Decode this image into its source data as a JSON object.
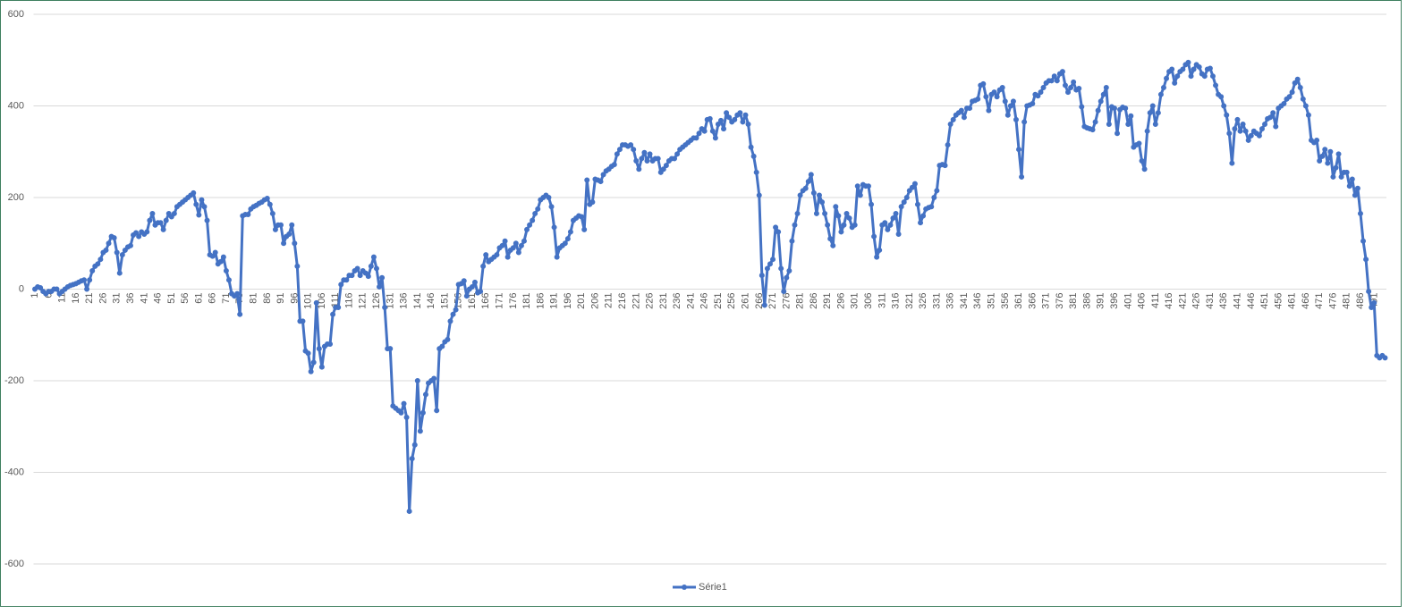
{
  "chart_data": {
    "type": "line",
    "categories": [
      1,
      null,
      null,
      null,
      null,
      6,
      null,
      null,
      null,
      null,
      11,
      null,
      null,
      null,
      null,
      16,
      null,
      null,
      null,
      null,
      21,
      null,
      null,
      null,
      null,
      26,
      null,
      null,
      null,
      null,
      31,
      null,
      null,
      null,
      null,
      36,
      null,
      null,
      null,
      null,
      41,
      null,
      null,
      null,
      null,
      46,
      null,
      null,
      null,
      null,
      51,
      null,
      null,
      null,
      null,
      56,
      null,
      null,
      null,
      null,
      61,
      null,
      null,
      null,
      null,
      66,
      null,
      null,
      null,
      null,
      71,
      null,
      null,
      null,
      null,
      76,
      null,
      null,
      null,
      null,
      81,
      null,
      null,
      null,
      null,
      86,
      null,
      null,
      null,
      null,
      91,
      null,
      null,
      null,
      null,
      96,
      null,
      null,
      null,
      null,
      101,
      null,
      null,
      null,
      null,
      106,
      null,
      null,
      null,
      null,
      111,
      null,
      null,
      null,
      null,
      116,
      null,
      null,
      null,
      null,
      121,
      null,
      null,
      null,
      null,
      126,
      null,
      null,
      null,
      null,
      131,
      null,
      null,
      null,
      null,
      136,
      null,
      null,
      null,
      null,
      141,
      null,
      null,
      null,
      null,
      146,
      null,
      null,
      null,
      null,
      151,
      null,
      null,
      null,
      null,
      156,
      null,
      null,
      null,
      null,
      161,
      null,
      null,
      null,
      null,
      166,
      null,
      null,
      null,
      null,
      171,
      null,
      null,
      null,
      null,
      176,
      null,
      null,
      null,
      null,
      181,
      null,
      null,
      null,
      null,
      186,
      null,
      null,
      null,
      null,
      191,
      null,
      null,
      null,
      null,
      196,
      null,
      null,
      null,
      null,
      201,
      null,
      null,
      null,
      null,
      206,
      null,
      null,
      null,
      null,
      211,
      null,
      null,
      null,
      null,
      216,
      null,
      null,
      null,
      null,
      221,
      null,
      null,
      null,
      null,
      226,
      null,
      null,
      null,
      null,
      231,
      null,
      null,
      null,
      null,
      236,
      null,
      null,
      null,
      null,
      241,
      null,
      null,
      null,
      null,
      246,
      null,
      null,
      null,
      null,
      251,
      null,
      null,
      null,
      null,
      256,
      null,
      null,
      null,
      null,
      261,
      null,
      null,
      null,
      null,
      266,
      null,
      null,
      null,
      null,
      271,
      null,
      null,
      null,
      null,
      276,
      null,
      null,
      null,
      null,
      281,
      null,
      null,
      null,
      null,
      286,
      null,
      null,
      null,
      null,
      291,
      null,
      null,
      null,
      null,
      296,
      null,
      null,
      null,
      null,
      301,
      null,
      null,
      null,
      null,
      306,
      null,
      null,
      null,
      null,
      311,
      null,
      null,
      null,
      null,
      316,
      null,
      null,
      null,
      null,
      321,
      null,
      null,
      null,
      null,
      326,
      null,
      null,
      null,
      null,
      331,
      null,
      null,
      null,
      null,
      336,
      null,
      null,
      null,
      null,
      341,
      null,
      null,
      null,
      null,
      346,
      null,
      null,
      null,
      null,
      351,
      null,
      null,
      null,
      null,
      356,
      null,
      null,
      null,
      null,
      361,
      null,
      null,
      null,
      null,
      366,
      null,
      null,
      null,
      null,
      371,
      null,
      null,
      null,
      null,
      376,
      null,
      null,
      null,
      null,
      381,
      null,
      null,
      null,
      null,
      386,
      null,
      null,
      null,
      null,
      391,
      null,
      null,
      null,
      null,
      396,
      null,
      null,
      null,
      null,
      401,
      null,
      null,
      null,
      null,
      406,
      null,
      null,
      null,
      null,
      411,
      null,
      null,
      null,
      null,
      416,
      null,
      null,
      null,
      null,
      421,
      null,
      null,
      null,
      null,
      426,
      null,
      null,
      null,
      null,
      431,
      null,
      null,
      null,
      null,
      436,
      null,
      null,
      null,
      null,
      441,
      null,
      null,
      null,
      null,
      446,
      null,
      null,
      null,
      null,
      451,
      null,
      null,
      null,
      null,
      456,
      null,
      null,
      null,
      null,
      461,
      null,
      null,
      null,
      null,
      466,
      null,
      null,
      null,
      null,
      471,
      null,
      null,
      null,
      null,
      476,
      null,
      null,
      null,
      null,
      481,
      null,
      null,
      null,
      null,
      486,
      null,
      null,
      null,
      null,
      491,
      null,
      null,
      null,
      null
    ],
    "series": [
      {
        "name": "Série1",
        "color": "#4472c4",
        "values": [
          0,
          5,
          3,
          -5,
          -10,
          -5,
          -5,
          0,
          0,
          -10,
          -5,
          0,
          5,
          8,
          10,
          12,
          15,
          18,
          20,
          0,
          20,
          40,
          50,
          55,
          65,
          80,
          85,
          100,
          115,
          112,
          80,
          35,
          75,
          85,
          92,
          95,
          118,
          123,
          115,
          125,
          120,
          125,
          150,
          165,
          140,
          145,
          145,
          130,
          150,
          165,
          158,
          165,
          180,
          185,
          190,
          195,
          200,
          205,
          210,
          185,
          162,
          195,
          180,
          150,
          75,
          72,
          80,
          55,
          60,
          70,
          40,
          20,
          -10,
          -15,
          -10,
          -55,
          160,
          163,
          163,
          175,
          180,
          183,
          187,
          190,
          195,
          198,
          185,
          165,
          130,
          140,
          140,
          100,
          115,
          120,
          140,
          100,
          50,
          -70,
          -70,
          -135,
          -140,
          -180,
          -160,
          -30,
          -130,
          -170,
          -125,
          -120,
          -120,
          -55,
          -40,
          -40,
          10,
          20,
          20,
          30,
          30,
          40,
          45,
          30,
          40,
          35,
          28,
          50,
          70,
          45,
          5,
          25,
          -40,
          -130,
          -130,
          -255,
          -260,
          -265,
          -270,
          -250,
          -280,
          -485,
          -370,
          -340,
          -200,
          -310,
          -270,
          -230,
          -205,
          -200,
          -195,
          -265,
          -130,
          -125,
          -115,
          -110,
          -70,
          -55,
          -45,
          10,
          12,
          18,
          -15,
          0,
          5,
          15,
          -8,
          -5,
          50,
          75,
          60,
          65,
          70,
          75,
          90,
          95,
          105,
          70,
          85,
          90,
          100,
          80,
          95,
          105,
          130,
          140,
          150,
          165,
          175,
          195,
          200,
          205,
          200,
          180,
          135,
          70,
          90,
          95,
          100,
          110,
          125,
          150,
          155,
          160,
          158,
          130,
          238,
          185,
          190,
          240,
          238,
          235,
          250,
          258,
          262,
          268,
          272,
          295,
          305,
          315,
          315,
          312,
          315,
          305,
          280,
          262,
          285,
          298,
          280,
          295,
          280,
          285,
          285,
          255,
          262,
          270,
          280,
          285,
          285,
          295,
          305,
          310,
          315,
          320,
          325,
          330,
          330,
          340,
          350,
          345,
          370,
          372,
          345,
          330,
          360,
          368,
          350,
          385,
          375,
          365,
          370,
          380,
          385,
          365,
          380,
          360,
          310,
          290,
          255,
          205,
          30,
          -35,
          45,
          55,
          65,
          135,
          125,
          45,
          -5,
          25,
          40,
          105,
          140,
          165,
          205,
          215,
          220,
          235,
          250,
          210,
          165,
          205,
          190,
          165,
          140,
          110,
          95,
          180,
          160,
          125,
          140,
          165,
          155,
          135,
          140,
          225,
          205,
          228,
          225,
          225,
          185,
          115,
          70,
          85,
          140,
          145,
          130,
          140,
          155,
          165,
          120,
          180,
          190,
          200,
          215,
          222,
          230,
          185,
          145,
          160,
          175,
          178,
          180,
          200,
          215,
          270,
          272,
          270,
          315,
          360,
          370,
          380,
          385,
          390,
          375,
          395,
          395,
          410,
          412,
          415,
          445,
          448,
          420,
          390,
          425,
          430,
          420,
          435,
          440,
          410,
          380,
          400,
          410,
          370,
          305,
          245,
          365,
          400,
          402,
          405,
          425,
          422,
          430,
          440,
          450,
          455,
          455,
          465,
          455,
          470,
          475,
          445,
          430,
          440,
          452,
          435,
          438,
          398,
          355,
          352,
          350,
          348,
          365,
          390,
          410,
          425,
          440,
          360,
          398,
          395,
          340,
          392,
          397,
          395,
          360,
          378,
          310,
          315,
          318,
          280,
          262,
          345,
          385,
          400,
          360,
          385,
          425,
          440,
          460,
          475,
          480,
          450,
          465,
          475,
          480,
          490,
          495,
          465,
          480,
          490,
          485,
          470,
          465,
          480,
          482,
          465,
          445,
          425,
          420,
          400,
          380,
          340,
          275,
          350,
          370,
          345,
          360,
          345,
          325,
          335,
          345,
          340,
          335,
          350,
          360,
          372,
          375,
          385,
          355,
          395,
          400,
          405,
          415,
          420,
          430,
          450,
          458,
          440,
          415,
          400,
          380,
          325,
          320,
          325,
          280,
          290,
          305,
          275,
          300,
          245,
          265,
          295,
          245,
          255,
          255,
          225,
          240,
          205,
          220,
          165,
          105,
          65,
          -5,
          -40,
          -30,
          -145,
          -150,
          -145,
          -150
        ]
      }
    ],
    "ylim": [
      -600,
      600
    ],
    "yticks": [
      -600,
      -400,
      -200,
      0,
      200,
      400,
      600
    ],
    "grid": true,
    "legend": "bottom"
  }
}
